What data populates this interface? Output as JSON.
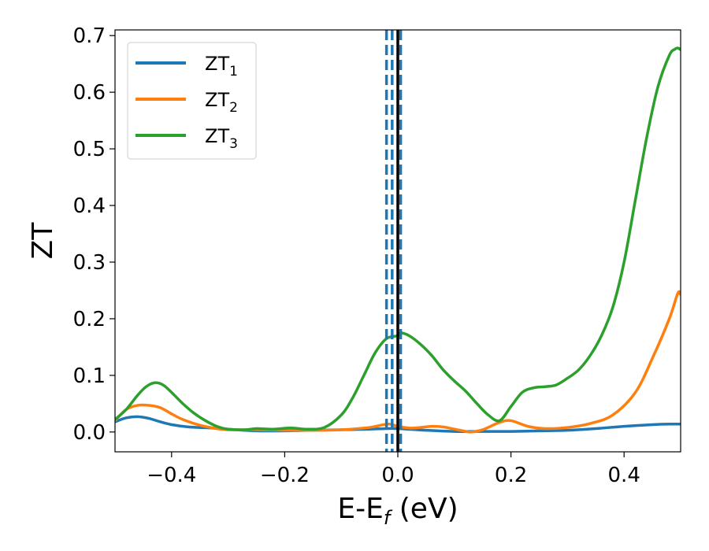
{
  "chart_data": {
    "type": "line",
    "title": "",
    "xlabel": "E-E",
    "xlabel_sub": "f",
    "xlabel_unit": " (eV)",
    "ylabel": "ZT",
    "xlim": [
      -0.5,
      0.5
    ],
    "ylim": [
      -0.035,
      0.71
    ],
    "xticks": [
      -0.4,
      -0.2,
      0.0,
      0.2,
      0.4
    ],
    "xtick_labels": [
      "−0.4",
      "−0.2",
      "0.0",
      "0.2",
      "0.4"
    ],
    "yticks": [
      0.0,
      0.1,
      0.2,
      0.3,
      0.4,
      0.5,
      0.6,
      0.7
    ],
    "ytick_labels": [
      "0.0",
      "0.1",
      "0.2",
      "0.3",
      "0.4",
      "0.5",
      "0.6",
      "0.7"
    ],
    "grid": false,
    "legend_position": "top-left",
    "vlines": [
      {
        "x": -0.02,
        "style": "dashed",
        "color": "#1f77b4"
      },
      {
        "x": -0.01,
        "style": "dashed",
        "color": "#1f77b4"
      },
      {
        "x": 0.005,
        "style": "dashed",
        "color": "#1f77b4"
      },
      {
        "x": 0.0,
        "style": "solid",
        "color": "#000000"
      }
    ],
    "series": [
      {
        "name": "ZT",
        "name_sub": "1",
        "color": "#1f77b4",
        "x": [
          -0.5,
          -0.48,
          -0.46,
          -0.44,
          -0.42,
          -0.4,
          -0.37,
          -0.33,
          -0.3,
          -0.25,
          -0.2,
          -0.15,
          -0.1,
          -0.05,
          -0.02,
          0.0,
          0.05,
          0.1,
          0.15,
          0.2,
          0.25,
          0.3,
          0.35,
          0.4,
          0.45,
          0.48,
          0.5
        ],
        "y": [
          0.018,
          0.025,
          0.027,
          0.024,
          0.018,
          0.013,
          0.009,
          0.007,
          0.005,
          0.002,
          0.002,
          0.003,
          0.004,
          0.005,
          0.006,
          0.006,
          0.003,
          0.001,
          0.001,
          0.001,
          0.002,
          0.003,
          0.006,
          0.01,
          0.013,
          0.014,
          0.014
        ]
      },
      {
        "name": "ZT",
        "name_sub": "2",
        "color": "#ff7f0e",
        "x": [
          -0.5,
          -0.48,
          -0.46,
          -0.44,
          -0.42,
          -0.4,
          -0.38,
          -0.35,
          -0.32,
          -0.3,
          -0.25,
          -0.2,
          -0.15,
          -0.1,
          -0.05,
          -0.03,
          -0.015,
          0.0,
          0.02,
          0.04,
          0.06,
          0.08,
          0.1,
          0.12,
          0.13,
          0.15,
          0.18,
          0.2,
          0.23,
          0.26,
          0.3,
          0.34,
          0.38,
          0.42,
          0.45,
          0.48,
          0.495,
          0.5
        ],
        "y": [
          0.02,
          0.04,
          0.047,
          0.047,
          0.043,
          0.032,
          0.022,
          0.012,
          0.006,
          0.004,
          0.004,
          0.003,
          0.003,
          0.004,
          0.008,
          0.012,
          0.014,
          0.01,
          0.007,
          0.008,
          0.01,
          0.009,
          0.005,
          0.001,
          0.0,
          0.004,
          0.017,
          0.02,
          0.01,
          0.006,
          0.008,
          0.015,
          0.03,
          0.07,
          0.13,
          0.2,
          0.245,
          0.243
        ]
      },
      {
        "name": "ZT",
        "name_sub": "3",
        "color": "#2ca02c",
        "x": [
          -0.5,
          -0.48,
          -0.46,
          -0.445,
          -0.43,
          -0.415,
          -0.4,
          -0.38,
          -0.36,
          -0.34,
          -0.32,
          -0.3,
          -0.27,
          -0.25,
          -0.22,
          -0.19,
          -0.16,
          -0.13,
          -0.1,
          -0.08,
          -0.06,
          -0.04,
          -0.02,
          0.0,
          0.005,
          0.02,
          0.04,
          0.06,
          0.08,
          0.1,
          0.12,
          0.14,
          0.16,
          0.18,
          0.2,
          0.22,
          0.24,
          0.26,
          0.28,
          0.3,
          0.32,
          0.34,
          0.36,
          0.38,
          0.4,
          0.42,
          0.44,
          0.46,
          0.48,
          0.49,
          0.495,
          0.5
        ],
        "y": [
          0.022,
          0.04,
          0.065,
          0.08,
          0.087,
          0.083,
          0.07,
          0.05,
          0.033,
          0.02,
          0.01,
          0.005,
          0.004,
          0.006,
          0.005,
          0.007,
          0.005,
          0.008,
          0.03,
          0.06,
          0.1,
          0.14,
          0.165,
          0.17,
          0.175,
          0.17,
          0.155,
          0.135,
          0.11,
          0.09,
          0.072,
          0.05,
          0.03,
          0.02,
          0.045,
          0.07,
          0.078,
          0.08,
          0.083,
          0.095,
          0.11,
          0.135,
          0.17,
          0.22,
          0.3,
          0.41,
          0.52,
          0.61,
          0.665,
          0.676,
          0.678,
          0.675
        ]
      }
    ]
  }
}
